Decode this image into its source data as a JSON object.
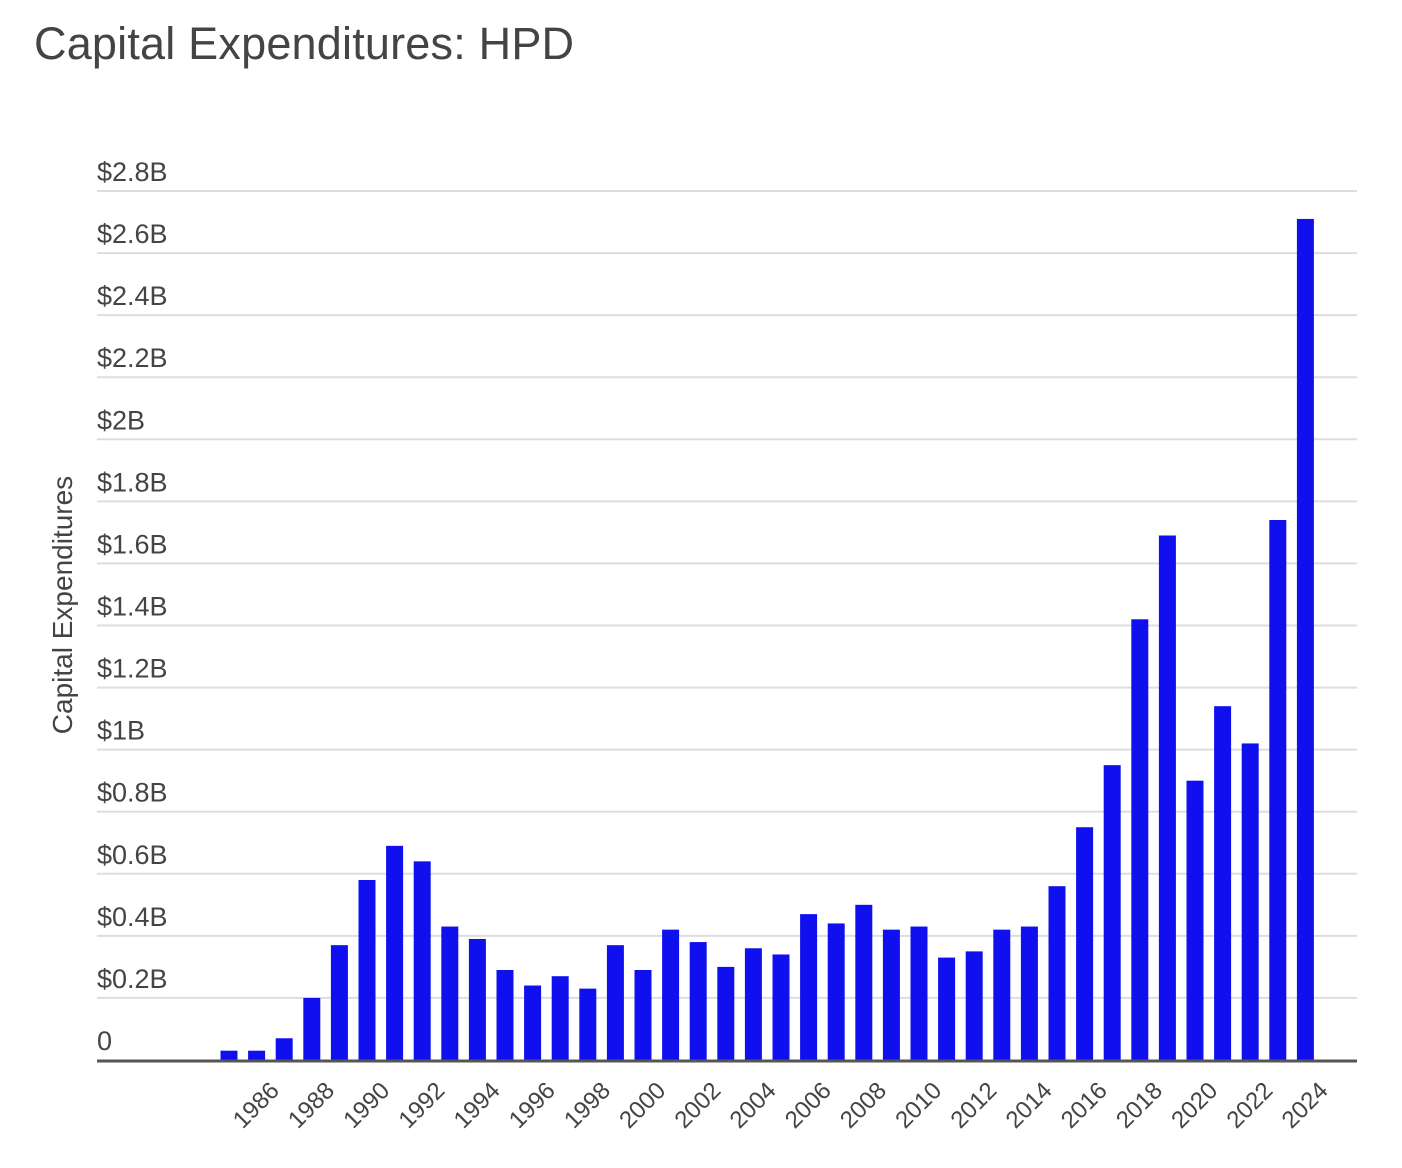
{
  "chart_data": {
    "type": "bar",
    "title": "Capital Expenditures: HPD",
    "ylabel": "Capital Expenditures",
    "xlabel": "",
    "ylim": [
      0,
      2.8
    ],
    "yticks": [
      "0",
      "$0.2B",
      "$0.4B",
      "$0.6B",
      "$0.8B",
      "$1B",
      "$1.2B",
      "$1.4B",
      "$1.6B",
      "$1.8B",
      "$2B",
      "$2.2B",
      "$2.4B",
      "$2.6B",
      "$2.8B"
    ],
    "xticks": [
      "1986",
      "1988",
      "1990",
      "1992",
      "1994",
      "1996",
      "1998",
      "2000",
      "2002",
      "2004",
      "2006",
      "2008",
      "2010",
      "2012",
      "2014",
      "2016",
      "2018",
      "2020",
      "2022",
      "2024"
    ],
    "categories": [
      1985,
      1986,
      1987,
      1988,
      1989,
      1990,
      1991,
      1992,
      1993,
      1994,
      1995,
      1996,
      1997,
      1998,
      1999,
      2000,
      2001,
      2002,
      2003,
      2004,
      2005,
      2006,
      2007,
      2008,
      2009,
      2010,
      2011,
      2012,
      2013,
      2014,
      2015,
      2016,
      2017,
      2018,
      2019,
      2020,
      2021,
      2022,
      2023,
      2024
    ],
    "series": [
      {
        "values": [
          0.03,
          0.03,
          0.07,
          0.2,
          0.37,
          0.58,
          0.69,
          0.64,
          0.43,
          0.39,
          0.29,
          0.24,
          0.27,
          0.23,
          0.37,
          0.29,
          0.42,
          0.38,
          0.3,
          0.36,
          0.34,
          0.47,
          0.44,
          0.5,
          0.42,
          0.43,
          0.33,
          0.35,
          0.42,
          0.43,
          0.56,
          0.75,
          0.95,
          1.42,
          1.69,
          0.9,
          1.14,
          1.02,
          1.74,
          2.71
        ]
      }
    ],
    "colors": {
      "bar": "#1010ee",
      "grid": "#dddddd",
      "axis": "#555555",
      "text": "#444444"
    },
    "grid": true,
    "legend": "none"
  }
}
